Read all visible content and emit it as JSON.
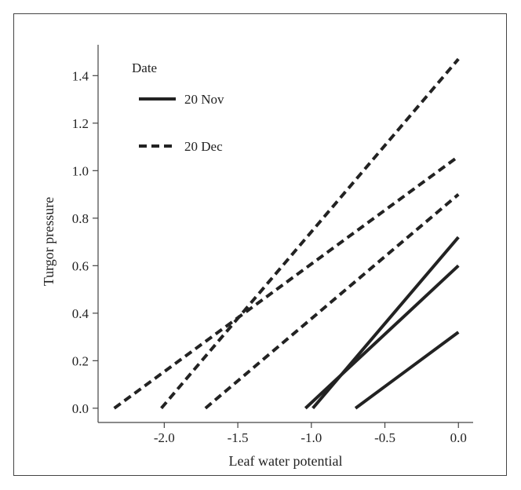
{
  "chart_data": {
    "type": "line",
    "xlabel": "Leaf water potential",
    "ylabel": "Turgor pressure",
    "xlim": [
      -2.45,
      0.1
    ],
    "ylim": [
      -0.06,
      1.53
    ],
    "xticks": [
      -2.0,
      -1.5,
      -1.0,
      -0.5,
      0.0
    ],
    "xtick_labels": [
      "-2.0",
      "-1.5",
      "-1.0",
      "-0.5",
      "0.0"
    ],
    "yticks": [
      0.0,
      0.2,
      0.4,
      0.6,
      0.8,
      1.0,
      1.2,
      1.4
    ],
    "ytick_labels": [
      "0.0",
      "0.2",
      "0.4",
      "0.6",
      "0.8",
      "1.0",
      "1.2",
      "1.4"
    ],
    "grid": false,
    "legend": {
      "title": "Date",
      "position": "top-left",
      "entries": [
        {
          "label": "20 Nov",
          "style": "solid"
        },
        {
          "label": "20 Dec",
          "style": "dashed"
        }
      ]
    },
    "series": [
      {
        "group": "20 Nov",
        "style": "solid",
        "x": [
          -1.04,
          0.0
        ],
        "y": [
          0.0,
          0.6
        ]
      },
      {
        "group": "20 Nov",
        "style": "solid",
        "x": [
          -0.99,
          0.0
        ],
        "y": [
          0.0,
          0.72
        ]
      },
      {
        "group": "20 Nov",
        "style": "solid",
        "x": [
          -0.7,
          0.0
        ],
        "y": [
          0.0,
          0.32
        ]
      },
      {
        "group": "20 Dec",
        "style": "dashed",
        "x": [
          -2.34,
          0.0
        ],
        "y": [
          0.0,
          1.06
        ]
      },
      {
        "group": "20 Dec",
        "style": "dashed",
        "x": [
          -2.02,
          0.0
        ],
        "y": [
          0.0,
          1.47
        ]
      },
      {
        "group": "20 Dec",
        "style": "dashed",
        "x": [
          -1.72,
          0.0
        ],
        "y": [
          0.0,
          0.9
        ]
      }
    ],
    "colors": {
      "line": "#222222",
      "axis": "#444444",
      "text": "#222222"
    }
  }
}
